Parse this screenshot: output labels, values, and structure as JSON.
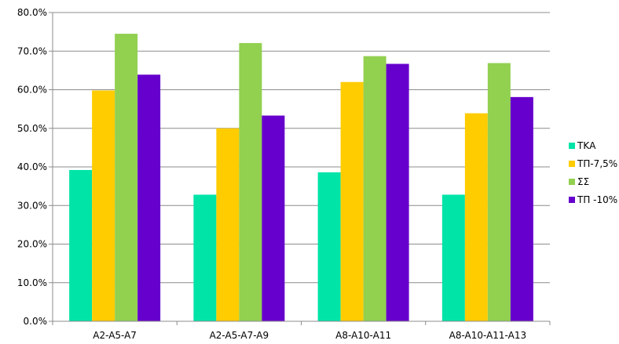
{
  "chart_data": {
    "type": "bar",
    "categories": [
      "A2-A5-A7",
      "A2-A5-A7-A9",
      "A8-A10-A11",
      "A8-A10-A11-A13"
    ],
    "series": [
      {
        "name": "ΤΚΑ",
        "color": "#00e4a8",
        "values": [
          39.2,
          32.8,
          38.6,
          32.8
        ]
      },
      {
        "name": "ΤΠ-7,5%",
        "color": "#ffcc00",
        "values": [
          59.8,
          50.0,
          62.0,
          53.9
        ]
      },
      {
        "name": "ΣΣ",
        "color": "#92d050",
        "values": [
          74.5,
          72.1,
          68.7,
          66.9
        ]
      },
      {
        "name": "ΤΠ -10%",
        "color": "#6600cc",
        "values": [
          63.9,
          53.3,
          66.7,
          58.1
        ]
      }
    ],
    "yticks": [
      "0.0%",
      "10.0%",
      "20.0%",
      "30.0%",
      "40.0%",
      "50.0%",
      "60.0%",
      "70.0%",
      "80.0%"
    ],
    "ylim": [
      0,
      80
    ],
    "grid": true,
    "legend_position": "right",
    "title": "",
    "xlabel": "",
    "ylabel": ""
  }
}
